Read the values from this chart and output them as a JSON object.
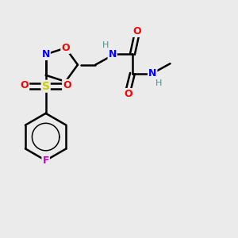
{
  "bg_color": "#ebebeb",
  "atom_colors": {
    "O": "#ff0000",
    "N": "#0000ff",
    "S": "#cccc00",
    "F": "#cc00cc",
    "C": "#000000",
    "H": "#4a9090"
  },
  "bond_color": "#000000",
  "lw": 1.8
}
